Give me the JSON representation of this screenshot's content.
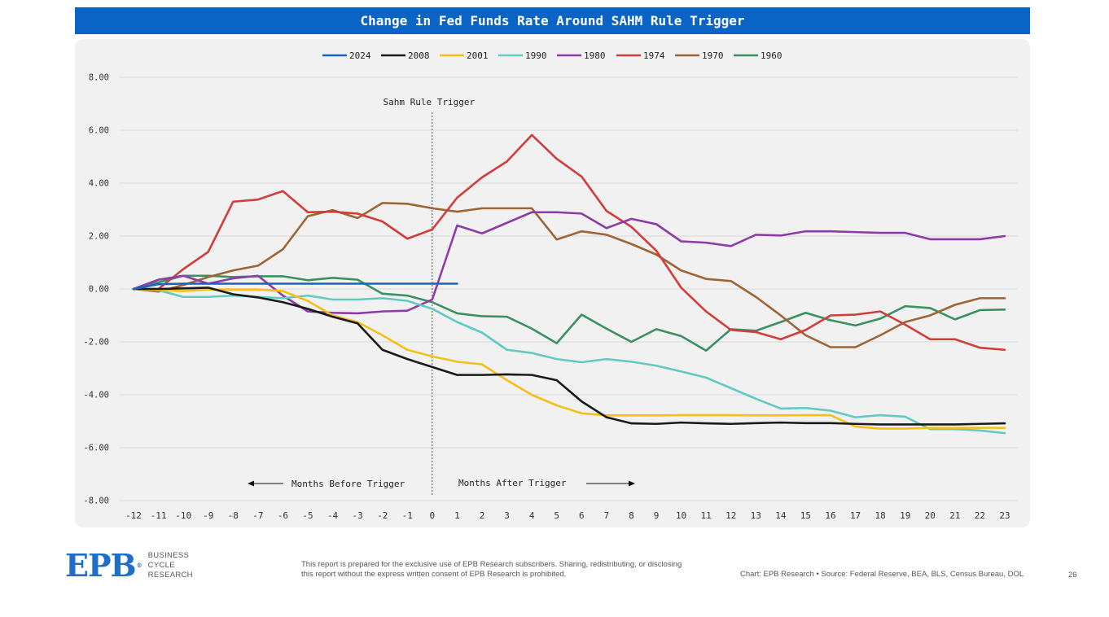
{
  "title": "Change in Fed Funds Rate Around SAHM Rule Trigger",
  "chart_data": {
    "type": "line",
    "title": "Change in Fed Funds Rate Around SAHM Rule Trigger",
    "xlabel": "",
    "ylabel": "",
    "x": [
      -12,
      -11,
      -10,
      -9,
      -8,
      -7,
      -6,
      -5,
      -4,
      -3,
      -2,
      -1,
      0,
      1,
      2,
      3,
      4,
      5,
      6,
      7,
      8,
      9,
      10,
      11,
      12,
      13,
      14,
      15,
      16,
      17,
      18,
      19,
      20,
      21,
      22,
      23
    ],
    "ylim": [
      -8,
      8
    ],
    "yticks": [
      "8.00",
      "6.00",
      "4.00",
      "2.00",
      "0.00",
      "-2.00",
      "-4.00",
      "-6.00",
      "-8.00"
    ],
    "grid": "horizontal",
    "legend_position": "top",
    "series": [
      {
        "name": "2024",
        "color": "#1565c0",
        "values": [
          0.0,
          0.18,
          0.2,
          0.2,
          0.2,
          0.2,
          0.2,
          0.2,
          0.2,
          0.2,
          0.2,
          0.2,
          0.2,
          0.2,
          null,
          null,
          null,
          null,
          null,
          null,
          null,
          null,
          null,
          null,
          null,
          null,
          null,
          null,
          null,
          null,
          null,
          null,
          null,
          null,
          null,
          null
        ]
      },
      {
        "name": "2008",
        "color": "#1a1a1a",
        "values": [
          0.0,
          0.0,
          0.02,
          0.05,
          -0.2,
          -0.32,
          -0.5,
          -0.75,
          -1.05,
          -1.3,
          -2.3,
          -2.65,
          -2.95,
          -3.25,
          -3.25,
          -3.23,
          -3.25,
          -3.45,
          -4.25,
          -4.85,
          -5.08,
          -5.1,
          -5.05,
          -5.08,
          -5.1,
          -5.07,
          -5.05,
          -5.07,
          -5.07,
          -5.1,
          -5.12,
          -5.12,
          -5.12,
          -5.12,
          -5.1,
          -5.08
        ]
      },
      {
        "name": "2001",
        "color": "#f5bf18",
        "values": [
          0.0,
          -0.05,
          -0.08,
          -0.02,
          -0.02,
          -0.02,
          -0.08,
          -0.45,
          -1.0,
          -1.25,
          -1.75,
          -2.3,
          -2.55,
          -2.75,
          -2.85,
          -3.45,
          -4.0,
          -4.4,
          -4.7,
          -4.78,
          -4.78,
          -4.78,
          -4.77,
          -4.77,
          -4.77,
          -4.78,
          -4.78,
          -4.77,
          -4.77,
          -5.2,
          -5.28,
          -5.28,
          -5.25,
          -5.25,
          -5.25,
          -5.25
        ]
      },
      {
        "name": "1990",
        "color": "#62c9c3",
        "values": [
          0.0,
          -0.05,
          -0.3,
          -0.3,
          -0.25,
          -0.3,
          -0.35,
          -0.25,
          -0.4,
          -0.4,
          -0.35,
          -0.45,
          -0.75,
          -1.25,
          -1.65,
          -2.3,
          -2.42,
          -2.65,
          -2.77,
          -2.65,
          -2.75,
          -2.9,
          -3.12,
          -3.35,
          -3.75,
          -4.15,
          -4.52,
          -4.5,
          -4.6,
          -4.85,
          -4.77,
          -4.83,
          -5.3,
          -5.3,
          -5.35,
          -5.45
        ]
      },
      {
        "name": "1980",
        "color": "#8e3aa8",
        "values": [
          0.0,
          0.35,
          0.5,
          0.2,
          0.4,
          0.5,
          -0.25,
          -0.85,
          -0.9,
          -0.92,
          -0.85,
          -0.82,
          -0.4,
          2.4,
          2.1,
          2.5,
          2.9,
          2.9,
          2.85,
          2.3,
          2.65,
          2.45,
          1.8,
          1.75,
          1.62,
          2.05,
          2.02,
          2.18,
          2.18,
          2.15,
          2.12,
          2.12,
          1.88,
          1.88,
          1.88,
          2.0
        ]
      },
      {
        "name": "1974",
        "color": "#d23d3a",
        "values": [
          0.0,
          0.0,
          0.75,
          1.4,
          3.3,
          3.38,
          3.7,
          2.9,
          2.92,
          2.85,
          2.55,
          1.9,
          2.25,
          3.45,
          4.22,
          4.82,
          5.82,
          4.92,
          4.25,
          2.95,
          2.35,
          1.45,
          0.05,
          -0.85,
          -1.55,
          -1.63,
          -1.9,
          -1.55,
          -1.0,
          -0.97,
          -0.85,
          -1.35,
          -1.9,
          -1.9,
          -2.22,
          -2.3
        ]
      },
      {
        "name": "1970",
        "color": "#9e6433",
        "values": [
          0.0,
          -0.1,
          0.15,
          0.45,
          0.7,
          0.88,
          1.5,
          2.75,
          2.98,
          2.68,
          3.25,
          3.22,
          3.05,
          2.92,
          3.05,
          3.05,
          3.05,
          1.87,
          2.18,
          2.05,
          1.7,
          1.3,
          0.7,
          0.38,
          0.3,
          -0.3,
          -1.0,
          -1.75,
          -2.2,
          -2.2,
          -1.75,
          -1.25,
          -1.0,
          -0.6,
          -0.35,
          -0.35
        ]
      },
      {
        "name": "1960",
        "color": "#3a9063",
        "values": [
          0.0,
          0.25,
          0.5,
          0.5,
          0.45,
          0.48,
          0.48,
          0.33,
          0.42,
          0.35,
          -0.18,
          -0.25,
          -0.5,
          -0.92,
          -1.03,
          -1.05,
          -1.5,
          -2.05,
          -0.97,
          -1.5,
          -2.0,
          -1.52,
          -1.78,
          -2.33,
          -1.52,
          -1.58,
          -1.25,
          -0.9,
          -1.18,
          -1.38,
          -1.12,
          -0.65,
          -0.72,
          -1.15,
          -0.8,
          -0.78
        ]
      }
    ],
    "annotations": {
      "trigger_label": "Sahm Rule Trigger",
      "trigger_x": 0,
      "before_label": "Months Before Trigger",
      "after_label": "Months After Trigger"
    }
  },
  "footer": {
    "logo_mark": "EPB",
    "logo_reg": "®",
    "logo_line1": "BUSINESS",
    "logo_line2": "CYCLE",
    "logo_line3": "RESEARCH",
    "disclaimer": "This report is prepared for the exclusive use of EPB Research subscribers. Sharing, redistributing, or disclosing this report without the express written consent of EPB Research is prohibited.",
    "source": "Chart: EPB Research  •  Source: Federal Reserve, BEA, BLS, Census Bureau, DOL",
    "page_number": "26"
  }
}
